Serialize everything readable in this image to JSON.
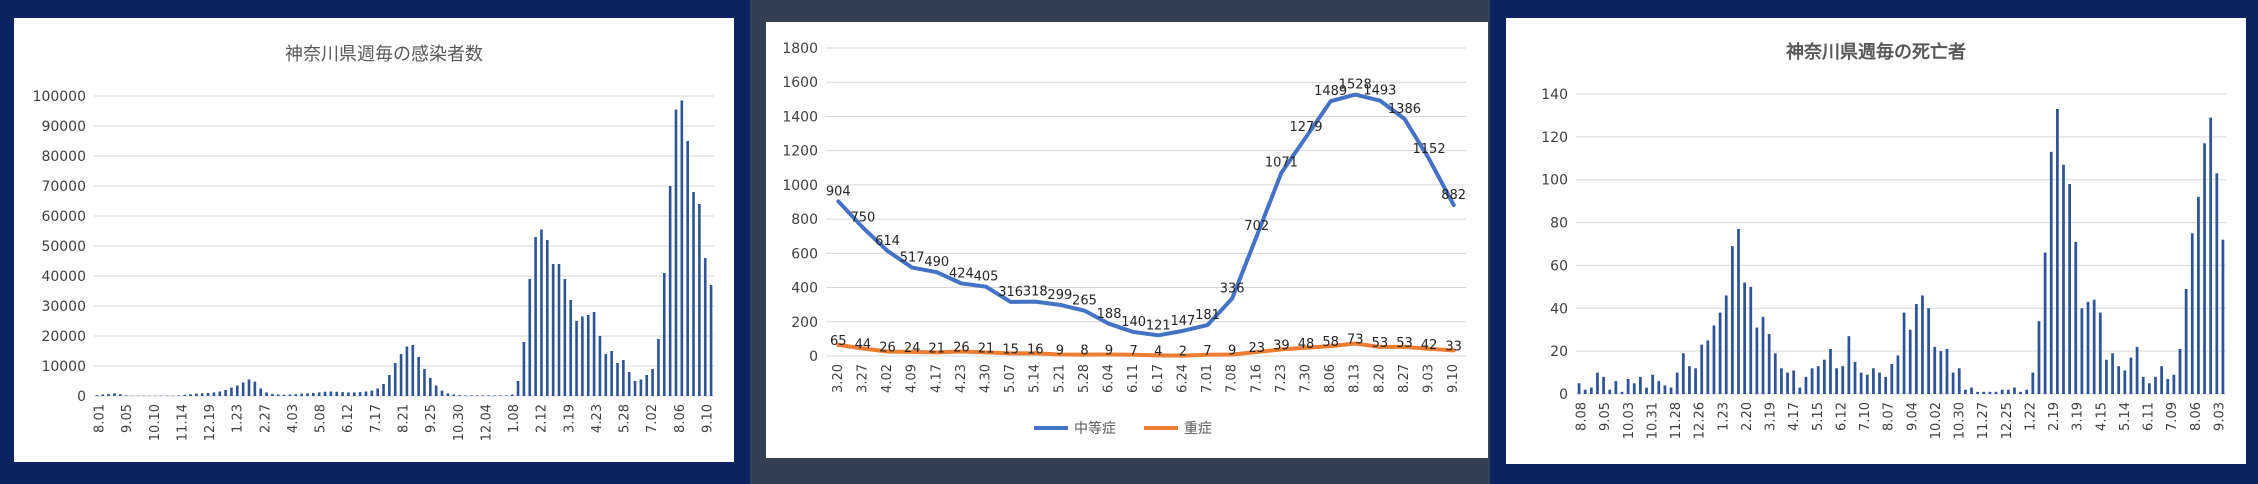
{
  "colors": {
    "navy": "#0d2260",
    "slate": "#333f52",
    "bar": "#2f5597",
    "blue": "#4472c4",
    "orange": "#ed7d31",
    "grid": "#d9d9d9",
    "text": "#595959"
  },
  "chart_data": [
    {
      "type": "bar",
      "title": "神奈川県週毎の感染者数",
      "ylim": [
        0,
        100000
      ],
      "yticks": [
        "0",
        "10000",
        "20000",
        "30000",
        "40000",
        "50000",
        "60000",
        "70000",
        "80000",
        "90000",
        "100000"
      ],
      "xticklabels": [
        "8.01",
        "9.05",
        "10.10",
        "11.14",
        "12.19",
        "1.23",
        "2.27",
        "4.03",
        "5.08",
        "6.12",
        "7.17",
        "8.21",
        "9.25",
        "10.30",
        "12.04",
        "1.08",
        "2.12",
        "3.19",
        "4.23",
        "5.28",
        "7.02",
        "8.06",
        "9.10"
      ],
      "values": [
        300,
        500,
        700,
        900,
        600,
        200,
        100,
        100,
        100,
        100,
        100,
        100,
        100,
        100,
        200,
        400,
        600,
        800,
        900,
        1000,
        1200,
        1500,
        2000,
        2800,
        3500,
        4500,
        5500,
        4800,
        2500,
        1200,
        700,
        500,
        400,
        500,
        600,
        800,
        900,
        1000,
        1200,
        1400,
        1500,
        1400,
        1300,
        1200,
        1200,
        1300,
        1500,
        1800,
        2500,
        4000,
        7000,
        11000,
        14000,
        16500,
        17000,
        13000,
        9000,
        6000,
        3500,
        1800,
        900,
        500,
        300,
        200,
        200,
        200,
        200,
        200,
        200,
        200,
        200,
        500,
        5000,
        18000,
        39000,
        53000,
        55500,
        52000,
        44000,
        44000,
        39000,
        32000,
        25000,
        26500,
        27000,
        28000,
        20000,
        14000,
        15000,
        11000,
        12000,
        8000,
        5000,
        5500,
        7000,
        9000,
        19000,
        41000,
        70000,
        95500,
        98500,
        85000,
        68000,
        64000,
        46000,
        37000
      ]
    },
    {
      "type": "line",
      "ylim": [
        0,
        1800
      ],
      "yticks": [
        "0",
        "200",
        "400",
        "600",
        "800",
        "1000",
        "1200",
        "1400",
        "1600",
        "1800"
      ],
      "categories": [
        "3.20",
        "3.27",
        "4.02",
        "4.09",
        "4.17",
        "4.23",
        "4.30",
        "5.07",
        "5.14",
        "5.21",
        "5.28",
        "6.04",
        "6.11",
        "6.17",
        "6.24",
        "7.01",
        "7.08",
        "7.16",
        "7.23",
        "7.30",
        "8.06",
        "8.13",
        "8.20",
        "8.27",
        "9.03",
        "9.10"
      ],
      "series": [
        {
          "name": "中等症",
          "color": "#4472c4",
          "values": [
            904,
            750,
            614,
            517,
            490,
            424,
            405,
            316,
            318,
            299,
            265,
            188,
            140,
            121,
            147,
            181,
            336,
            702,
            1071,
            1279,
            1489,
            1528,
            1493,
            1386,
            1152,
            882
          ]
        },
        {
          "name": "重症",
          "color": "#ed7d31",
          "values": [
            65,
            44,
            26,
            24,
            21,
            26,
            21,
            15,
            16,
            9,
            8,
            9,
            7,
            4,
            2,
            7,
            9,
            23,
            39,
            48,
            58,
            73,
            53,
            53,
            42,
            33
          ]
        }
      ]
    },
    {
      "type": "bar",
      "title": "神奈川県週毎の死亡者",
      "ylim": [
        0,
        140
      ],
      "yticks": [
        "0",
        "20",
        "40",
        "60",
        "80",
        "100",
        "120",
        "140"
      ],
      "xticklabels": [
        "8.08",
        "9.05",
        "10.03",
        "10.31",
        "11.28",
        "12.26",
        "1.23",
        "2.20",
        "3.19",
        "4.17",
        "5.15",
        "6.12",
        "7.10",
        "8.07",
        "9.04",
        "10.02",
        "10.30",
        "11.27",
        "12.25",
        "1.22",
        "2.19",
        "3.19",
        "4.15",
        "5.14",
        "6.11",
        "7.09",
        "8.06",
        "9.03"
      ],
      "values": [
        5,
        2,
        3,
        10,
        8,
        2,
        6,
        1,
        7,
        5,
        8,
        3,
        9,
        6,
        4,
        3,
        10,
        19,
        13,
        12,
        23,
        25,
        32,
        38,
        46,
        69,
        77,
        52,
        50,
        31,
        36,
        28,
        19,
        12,
        10,
        11,
        3,
        8,
        12,
        13,
        16,
        21,
        12,
        13,
        27,
        15,
        10,
        9,
        12,
        10,
        8,
        14,
        18,
        38,
        30,
        42,
        46,
        40,
        22,
        20,
        21,
        10,
        12,
        2,
        3,
        1,
        1,
        1,
        1,
        2,
        2,
        3,
        1,
        2,
        10,
        34,
        66,
        113,
        133,
        107,
        98,
        71,
        40,
        43,
        44,
        38,
        16,
        19,
        13,
        11,
        17,
        22,
        8,
        5,
        8,
        13,
        7,
        9,
        21,
        49,
        75,
        92,
        117,
        129,
        103,
        72
      ]
    }
  ]
}
